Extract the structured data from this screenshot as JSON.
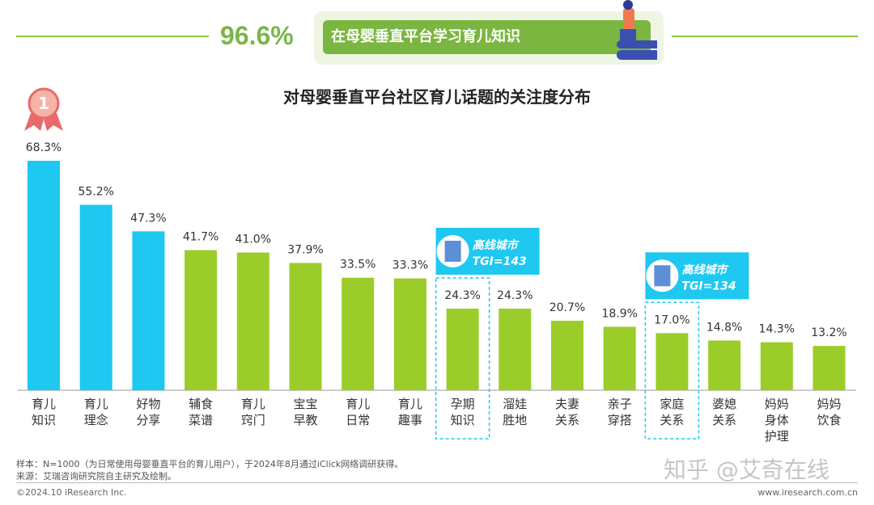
{
  "header": {
    "highlight_value": "96.6%",
    "highlight_text": "在母婴垂直平台学习育儿知识"
  },
  "chart_data": {
    "type": "bar",
    "title": "对母婴垂直平台社区育儿话题的关注度分布",
    "categories": [
      "育儿\n知识",
      "育儿\n理念",
      "好物\n分享",
      "辅食\n菜谱",
      "育儿\n窍门",
      "宝宝\n早教",
      "育儿\n日常",
      "育儿\n趣事",
      "孕期\n知识",
      "溜娃\n胜地",
      "夫妻\n关系",
      "亲子\n穿搭",
      "家庭\n关系",
      "婆媳\n关系",
      "妈妈\n身体\n护理",
      "妈妈\n饮食"
    ],
    "values": [
      68.3,
      55.2,
      47.3,
      41.7,
      41.0,
      37.9,
      33.5,
      33.3,
      24.3,
      24.3,
      20.7,
      18.9,
      17.0,
      14.8,
      14.3,
      13.2
    ],
    "data_labels": [
      "68.3%",
      "55.2%",
      "47.3%",
      "41.7%",
      "41.0%",
      "37.9%",
      "33.5%",
      "33.3%",
      "24.3%",
      "24.3%",
      "20.7%",
      "18.9%",
      "17.0%",
      "14.8%",
      "14.3%",
      "13.2%"
    ],
    "colors": {
      "top3": "#1ec8f0",
      "rest": "#9acd2a",
      "callout": "#1ec8f0"
    },
    "rank_badge": "1",
    "callouts": [
      {
        "category_index": 8,
        "line1": "高线城市",
        "line2": "TGI=143"
      },
      {
        "category_index": 12,
        "line1": "高线城市",
        "line2": "TGI=134"
      }
    ],
    "ylim": [
      0,
      70
    ]
  },
  "footer": {
    "sample": "样本：N=1000（为日常使用母婴垂直平台的育儿用户），于2024年8月通过iClick网络调研获得。",
    "source": "来源：艾瑞咨询研究院自主研究及绘制。",
    "copyright": "©2024.10 iResearch Inc.",
    "website": "www.iresearch.com.cn",
    "watermark": "知乎 @艾奇在线"
  }
}
